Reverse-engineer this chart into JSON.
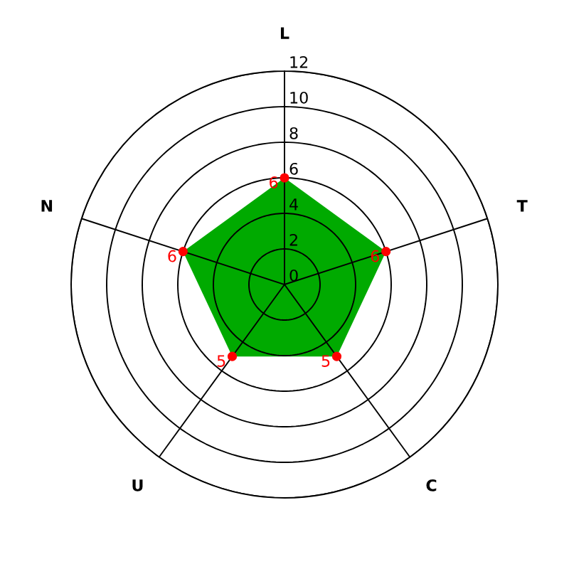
{
  "chart_data": {
    "type": "radar",
    "categories": [
      "L",
      "T",
      "C",
      "U",
      "N"
    ],
    "series": [
      {
        "color": "#00aa00",
        "colors": [
          "#ff0000",
          "#ff0000",
          "#ff0000",
          "#ff0000",
          "#ff0000"
        ],
        "values": [
          6,
          6,
          5,
          5,
          6
        ]
      }
    ],
    "marker": "circle",
    "data_labels": true,
    "ylim": [
      0,
      12
    ],
    "yticks": [
      0,
      2,
      4,
      6,
      8,
      10,
      12
    ],
    "grid": true
  }
}
